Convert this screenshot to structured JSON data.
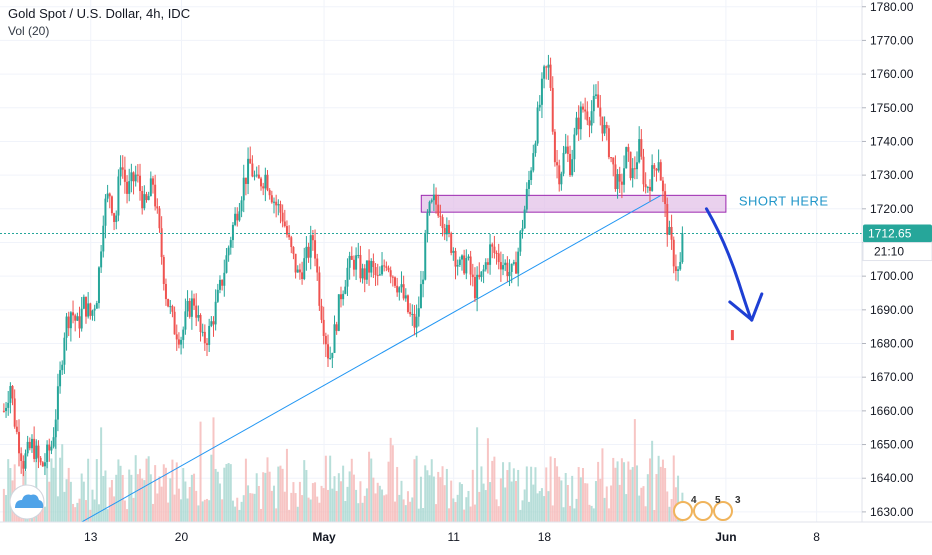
{
  "legend": {
    "symbol": "Gold Spot / U.S. Dollar, 4h, IDC",
    "indicator": "Vol (20)"
  },
  "annotation": {
    "text": "SHORT HERE"
  },
  "price_label": {
    "value": "1712.65",
    "countdown": "21:10"
  },
  "event_badges": [
    "4",
    "5",
    "3"
  ],
  "colors": {
    "up": "#26a69a",
    "down": "#ef5350",
    "trendline": "#2196f3",
    "zone_fill": "#e1bee7",
    "zone_border": "#9c27b0",
    "arrow": "#1e3fd4",
    "price_line": "#26a69a",
    "annotation": "#2196c9"
  },
  "chart_data": {
    "type": "candlestick",
    "title": "Gold Spot / U.S. Dollar, 4h, IDC",
    "xlabel": "",
    "ylabel": "",
    "ylim": [
      1627,
      1782
    ],
    "y_ticks": [
      1630,
      1640,
      1650,
      1660,
      1670,
      1680,
      1690,
      1700,
      1710,
      1720,
      1730,
      1740,
      1750,
      1760,
      1770,
      1780
    ],
    "y_tick_labels": [
      "1630.00",
      "1640.00",
      "1650.00",
      "1660.00",
      "1670.00",
      "1680.00",
      "1690.00",
      "1700.00",
      "1710.00",
      "1720.00",
      "1730.00",
      "1740.00",
      "1750.00",
      "1760.00",
      "1770.00",
      "1780.00"
    ],
    "x_ticks": [
      {
        "label": "13",
        "day": 13,
        "bold": false
      },
      {
        "label": "20",
        "day": 20,
        "bold": false
      },
      {
        "label": "May",
        "day": 31,
        "bold": true
      },
      {
        "label": "11",
        "day": 41,
        "bold": false
      },
      {
        "label": "18",
        "day": 48,
        "bold": false
      },
      {
        "label": "Jun",
        "day": 62,
        "bold": true
      },
      {
        "label": "8",
        "day": 69,
        "bold": false
      }
    ],
    "x_range_days": [
      6.0,
      72.5
    ],
    "bar_duration_days": 0.1667,
    "close_path": [
      {
        "day": 6.3,
        "price": 1660
      },
      {
        "day": 6.8,
        "price": 1668
      },
      {
        "day": 7.2,
        "price": 1655
      },
      {
        "day": 7.8,
        "price": 1645
      },
      {
        "day": 8.5,
        "price": 1650
      },
      {
        "day": 9.2,
        "price": 1643
      },
      {
        "day": 10.0,
        "price": 1650
      },
      {
        "day": 10.5,
        "price": 1665
      },
      {
        "day": 11.0,
        "price": 1685
      },
      {
        "day": 11.5,
        "price": 1690
      },
      {
        "day": 12.0,
        "price": 1685
      },
      {
        "day": 12.5,
        "price": 1692
      },
      {
        "day": 13.0,
        "price": 1688
      },
      {
        "day": 13.5,
        "price": 1695
      },
      {
        "day": 14.0,
        "price": 1720
      },
      {
        "day": 14.5,
        "price": 1725
      },
      {
        "day": 14.9,
        "price": 1715
      },
      {
        "day": 15.3,
        "price": 1735
      },
      {
        "day": 15.8,
        "price": 1725
      },
      {
        "day": 16.5,
        "price": 1730
      },
      {
        "day": 17.2,
        "price": 1720
      },
      {
        "day": 17.8,
        "price": 1728
      },
      {
        "day": 18.3,
        "price": 1712
      },
      {
        "day": 18.8,
        "price": 1695
      },
      {
        "day": 19.4,
        "price": 1685
      },
      {
        "day": 20.0,
        "price": 1682
      },
      {
        "day": 20.5,
        "price": 1690
      },
      {
        "day": 21.0,
        "price": 1693
      },
      {
        "day": 21.6,
        "price": 1680
      },
      {
        "day": 22.1,
        "price": 1683
      },
      {
        "day": 22.6,
        "price": 1690
      },
      {
        "day": 23.2,
        "price": 1700
      },
      {
        "day": 23.8,
        "price": 1712
      },
      {
        "day": 24.3,
        "price": 1720
      },
      {
        "day": 24.8,
        "price": 1728
      },
      {
        "day": 25.3,
        "price": 1733
      },
      {
        "day": 25.8,
        "price": 1727
      },
      {
        "day": 26.5,
        "price": 1730
      },
      {
        "day": 27.2,
        "price": 1722
      },
      {
        "day": 27.8,
        "price": 1718
      },
      {
        "day": 28.4,
        "price": 1708
      },
      {
        "day": 29.0,
        "price": 1700
      },
      {
        "day": 29.6,
        "price": 1705
      },
      {
        "day": 30.2,
        "price": 1712
      },
      {
        "day": 30.6,
        "price": 1695
      },
      {
        "day": 31.0,
        "price": 1685
      },
      {
        "day": 31.4,
        "price": 1675
      },
      {
        "day": 31.8,
        "price": 1683
      },
      {
        "day": 32.3,
        "price": 1695
      },
      {
        "day": 32.8,
        "price": 1702
      },
      {
        "day": 33.4,
        "price": 1705
      },
      {
        "day": 34.0,
        "price": 1700
      },
      {
        "day": 34.6,
        "price": 1703
      },
      {
        "day": 35.2,
        "price": 1698
      },
      {
        "day": 35.8,
        "price": 1705
      },
      {
        "day": 36.4,
        "price": 1700
      },
      {
        "day": 37.0,
        "price": 1695
      },
      {
        "day": 37.6,
        "price": 1688
      },
      {
        "day": 38.1,
        "price": 1685
      },
      {
        "day": 38.6,
        "price": 1700
      },
      {
        "day": 39.0,
        "price": 1718
      },
      {
        "day": 39.5,
        "price": 1722
      },
      {
        "day": 40.0,
        "price": 1720
      },
      {
        "day": 40.5,
        "price": 1712
      },
      {
        "day": 41.0,
        "price": 1708
      },
      {
        "day": 41.5,
        "price": 1702
      },
      {
        "day": 42.0,
        "price": 1705
      },
      {
        "day": 42.6,
        "price": 1696
      },
      {
        "day": 43.2,
        "price": 1700
      },
      {
        "day": 43.8,
        "price": 1708
      },
      {
        "day": 44.4,
        "price": 1706
      },
      {
        "day": 45.0,
        "price": 1703
      },
      {
        "day": 45.6,
        "price": 1700
      },
      {
        "day": 46.0,
        "price": 1708
      },
      {
        "day": 46.4,
        "price": 1718
      },
      {
        "day": 46.8,
        "price": 1728
      },
      {
        "day": 47.2,
        "price": 1740
      },
      {
        "day": 47.6,
        "price": 1750
      },
      {
        "day": 48.0,
        "price": 1760
      },
      {
        "day": 48.4,
        "price": 1762
      },
      {
        "day": 48.8,
        "price": 1735
      },
      {
        "day": 49.2,
        "price": 1730
      },
      {
        "day": 49.6,
        "price": 1738
      },
      {
        "day": 50.0,
        "price": 1733
      },
      {
        "day": 50.5,
        "price": 1745
      },
      {
        "day": 51.0,
        "price": 1750
      },
      {
        "day": 51.5,
        "price": 1748
      },
      {
        "day": 52.0,
        "price": 1752
      },
      {
        "day": 52.5,
        "price": 1745
      },
      {
        "day": 53.0,
        "price": 1738
      },
      {
        "day": 53.4,
        "price": 1730
      },
      {
        "day": 53.8,
        "price": 1725
      },
      {
        "day": 54.3,
        "price": 1736
      },
      {
        "day": 54.8,
        "price": 1730
      },
      {
        "day": 55.3,
        "price": 1738
      },
      {
        "day": 55.8,
        "price": 1726
      },
      {
        "day": 56.3,
        "price": 1730
      },
      {
        "day": 56.8,
        "price": 1736
      },
      {
        "day": 57.2,
        "price": 1722
      },
      {
        "day": 57.6,
        "price": 1712
      },
      {
        "day": 58.0,
        "price": 1705
      },
      {
        "day": 58.4,
        "price": 1700
      },
      {
        "day": 58.7,
        "price": 1712
      }
    ],
    "last_price": 1712.65,
    "stray_bar": {
      "day": 62.5,
      "low": 1681,
      "high": 1684
    },
    "trendline": [
      {
        "day": 10.0,
        "price": 1622
      },
      {
        "day": 57.0,
        "price": 1724
      }
    ],
    "resistance_zone": {
      "day_start": 38.5,
      "day_end": 62.0,
      "price_low": 1719,
      "price_high": 1724
    },
    "forecast_arrow": [
      {
        "day": 60.5,
        "price": 1720
      },
      {
        "day": 62.0,
        "price": 1710
      },
      {
        "day": 63.0,
        "price": 1698
      },
      {
        "day": 64.0,
        "price": 1687
      }
    ],
    "annotation_position": {
      "day": 63.0,
      "price": 1721
    }
  }
}
